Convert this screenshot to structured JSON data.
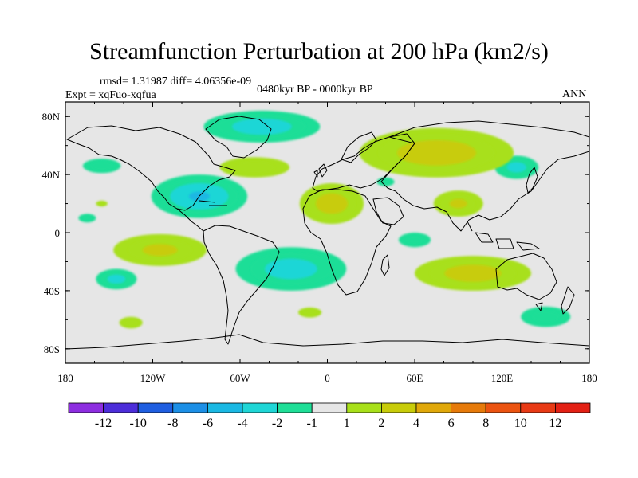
{
  "title": "Streamfunction Perturbation at 200 hPa (km2/s)",
  "stats": "rmsd= 1.31987 diff= 4.06356e-09",
  "experiment": "Expt = xqFuo-xqfua",
  "period": "0480kyr BP - 0000kyr BP",
  "season": "ANN",
  "map_data": {
    "variable": "Streamfunction perturbation",
    "level": "200 hPa",
    "units": "km2/s",
    "lon_range": [
      -180,
      180
    ],
    "lat_range": [
      -90,
      90
    ],
    "x_ticks": [
      {
        "value": -180,
        "label": "180"
      },
      {
        "value": -120,
        "label": "120W"
      },
      {
        "value": -60,
        "label": "60W"
      },
      {
        "value": 0,
        "label": "0"
      },
      {
        "value": 60,
        "label": "60E"
      },
      {
        "value": 120,
        "label": "120E"
      },
      {
        "value": 180,
        "label": "180"
      }
    ],
    "y_ticks": [
      {
        "value": 80,
        "label": "80N"
      },
      {
        "value": 40,
        "label": "40N"
      },
      {
        "value": 0,
        "label": "0"
      },
      {
        "value": -40,
        "label": "40S"
      },
      {
        "value": -80,
        "label": "80S"
      }
    ],
    "anomalies": [
      {
        "lon": -88,
        "lat": 25,
        "rlon": 33,
        "rlat": 15,
        "value": -4.5
      },
      {
        "lon": -45,
        "lat": 73,
        "rlon": 40,
        "rlat": 11,
        "value": -3.5
      },
      {
        "lon": -25,
        "lat": -25,
        "rlon": 38,
        "rlat": 15,
        "value": -3.2
      },
      {
        "lon": -145,
        "lat": -32,
        "rlon": 14,
        "rlat": 7,
        "value": -3
      },
      {
        "lon": 130,
        "lat": 45,
        "rlon": 15,
        "rlat": 8,
        "value": -3
      },
      {
        "lon": -155,
        "lat": 46,
        "rlon": 13,
        "rlat": 5,
        "value": -1.8
      },
      {
        "lon": 150,
        "lat": -58,
        "rlon": 17,
        "rlat": 7,
        "value": -1.6
      },
      {
        "lon": 60,
        "lat": -5,
        "rlon": 11,
        "rlat": 5,
        "value": -1.5
      },
      {
        "lon": 40,
        "lat": 35,
        "rlon": 6,
        "rlat": 3,
        "value": -1.4
      },
      {
        "lon": -165,
        "lat": 10,
        "rlon": 6,
        "rlat": 3,
        "value": -1.2
      },
      {
        "lon": 75,
        "lat": 55,
        "rlon": 53,
        "rlat": 17,
        "value": 3.5
      },
      {
        "lon": 3,
        "lat": 20,
        "rlon": 22,
        "rlat": 14,
        "value": 3.4
      },
      {
        "lon": 90,
        "lat": 20,
        "rlon": 17,
        "rlat": 9,
        "value": 2.5
      },
      {
        "lon": 100,
        "lat": -28,
        "rlon": 40,
        "rlat": 12,
        "value": 3.3
      },
      {
        "lon": -115,
        "lat": -12,
        "rlon": 32,
        "rlat": 11,
        "value": 2.6
      },
      {
        "lon": -50,
        "lat": 45,
        "rlon": 24,
        "rlat": 7,
        "value": 1.8
      },
      {
        "lon": -135,
        "lat": -62,
        "rlon": 8,
        "rlat": 4,
        "value": 1.5
      },
      {
        "lon": -12,
        "lat": -55,
        "rlon": 8,
        "rlat": 3.5,
        "value": 1.4
      },
      {
        "lon": -155,
        "lat": 20,
        "rlon": 4,
        "rlat": 2,
        "value": 1.2
      }
    ]
  },
  "colorbar": {
    "levels": [
      -12,
      -10,
      -8,
      -6,
      -4,
      -2,
      -1,
      1,
      2,
      4,
      6,
      8,
      10,
      12
    ],
    "labels": [
      "-12",
      "-10",
      "-8",
      "-6",
      "-4",
      "-2",
      "-1",
      "1",
      "2",
      "4",
      "6",
      "8",
      "10",
      "12"
    ],
    "colors": [
      "#8d2ee0",
      "#4c2dd9",
      "#1f5ee0",
      "#1c8fe6",
      "#1ab8e3",
      "#1fd6d6",
      "#1fde97",
      "#e6e6e6",
      "#a8e01a",
      "#c8cc0a",
      "#e0a80a",
      "#e67a0a",
      "#eb5310",
      "#e83a15",
      "#e32014"
    ]
  }
}
